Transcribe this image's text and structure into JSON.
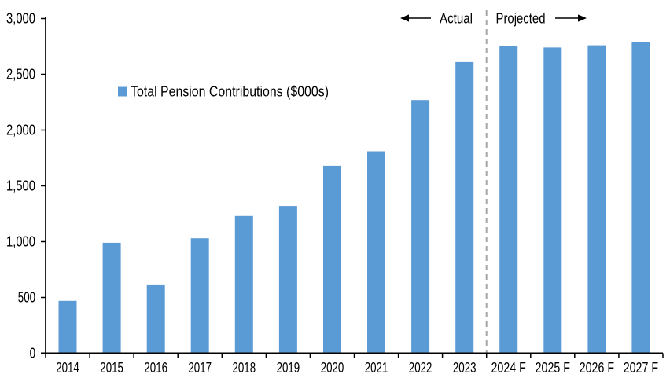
{
  "chart_data": {
    "type": "bar",
    "title": "",
    "legend": {
      "label": "Total Pension Contributions ($000s)",
      "position": "inside-top-left",
      "marker_color": "#5B9BD5"
    },
    "categories": [
      "2014",
      "2015",
      "2016",
      "2017",
      "2018",
      "2019",
      "2020",
      "2021",
      "2022",
      "2023",
      "2024 F",
      "2025 F",
      "2026 F",
      "2027 F"
    ],
    "values": [
      470,
      990,
      610,
      1030,
      1230,
      1320,
      1680,
      1810,
      2270,
      2610,
      2750,
      2740,
      2760,
      2790
    ],
    "xlabel": "",
    "ylabel": "",
    "ylim": [
      0,
      3000
    ],
    "ytick_interval": 500,
    "ytick_labels": [
      "0",
      "500",
      "1,000",
      "1,500",
      "2,000",
      "2,500",
      "3,000"
    ],
    "grid": false,
    "legend_visible": true,
    "bar_color": "#5B9BD5",
    "axis_color": "#000000",
    "text_color": "#000000",
    "background_color": "#FFFFFF",
    "annotations": {
      "actual_label": "Actual",
      "projected_label": "Projected",
      "divider_between": [
        "2023",
        "2024 F"
      ],
      "divider_color": "#A6A6A6"
    }
  }
}
